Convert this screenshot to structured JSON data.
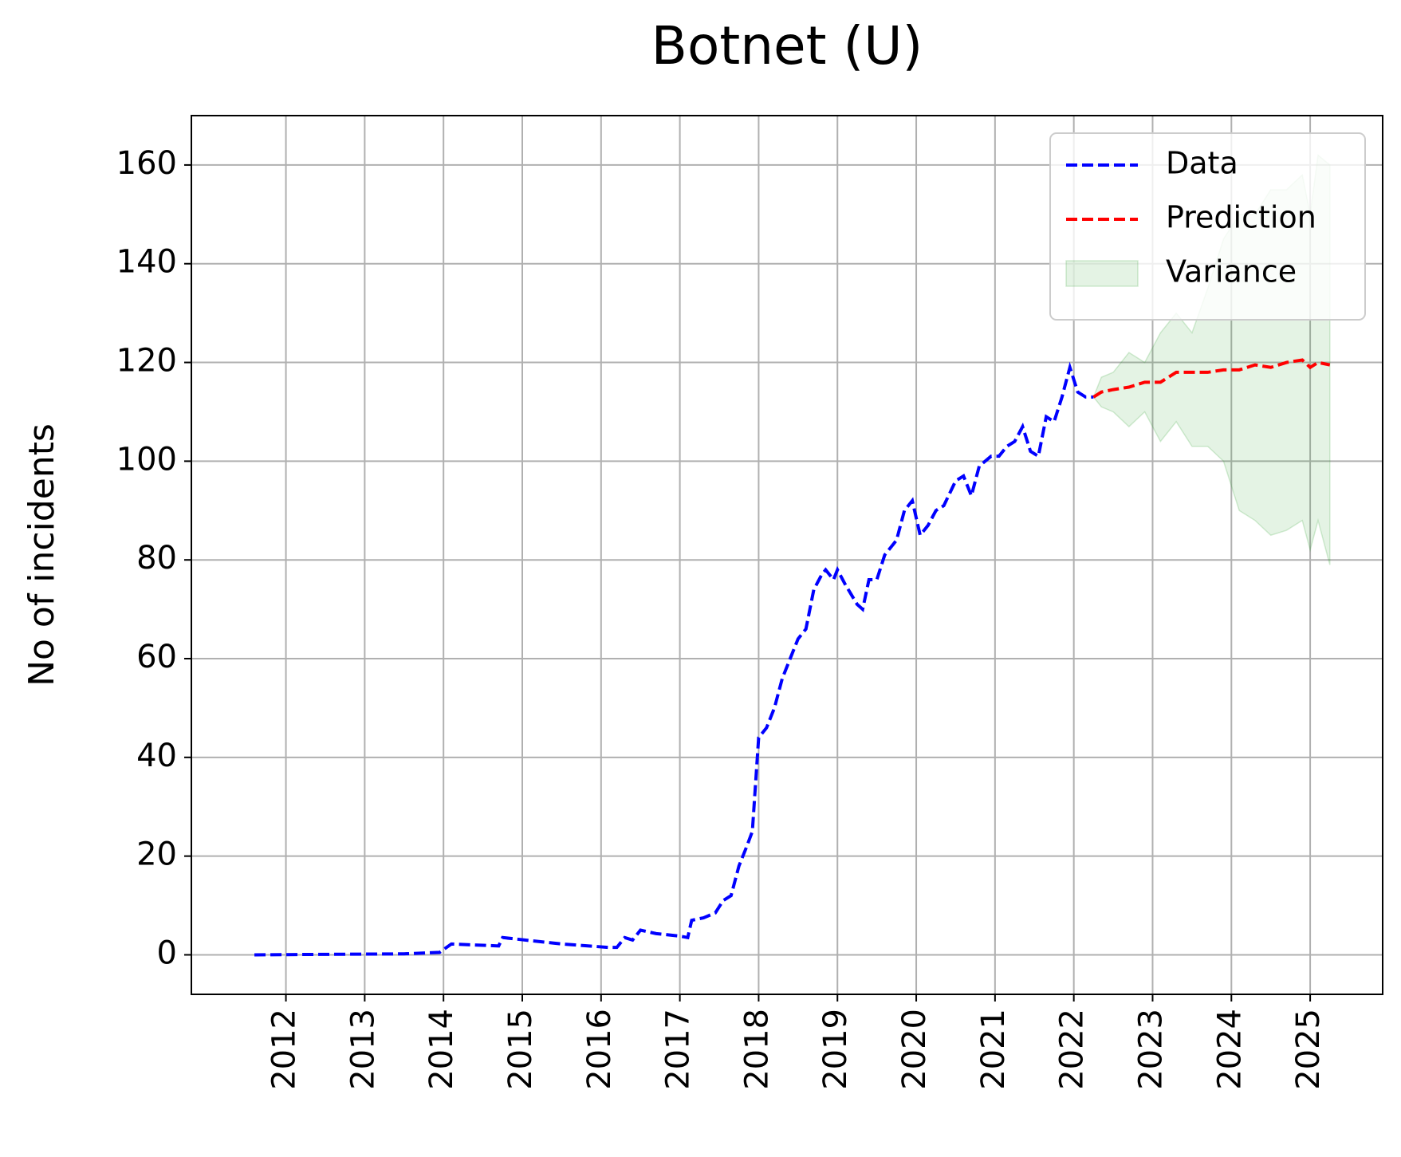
{
  "chart_data": {
    "type": "line",
    "title": "Botnet (U)",
    "y_label": "No of incidents",
    "xlim": [
      2010.8,
      2025.92
    ],
    "ylim": [
      -8,
      170
    ],
    "xticks": [
      2012,
      2013,
      2014,
      2015,
      2016,
      2017,
      2018,
      2019,
      2020,
      2021,
      2022,
      2023,
      2024,
      2025
    ],
    "yticks": [
      0,
      20,
      40,
      60,
      80,
      100,
      120,
      140,
      160
    ],
    "grid": true,
    "legend": "upper right",
    "series": [
      {
        "name": "Data",
        "color": "#0000ff",
        "x": [
          2011.6,
          2012.5,
          2013.5,
          2013.95,
          2014.1,
          2014.7,
          2014.75,
          2015.5,
          2016.1,
          2016.2,
          2016.3,
          2016.4,
          2016.5,
          2016.7,
          2017.0,
          2017.1,
          2017.15,
          2017.3,
          2017.45,
          2017.55,
          2017.65,
          2017.75,
          2017.85,
          2017.92,
          2018.0,
          2018.1,
          2018.2,
          2018.3,
          2018.4,
          2018.5,
          2018.6,
          2018.7,
          2018.8,
          2018.85,
          2018.95,
          2019.0,
          2019.1,
          2019.25,
          2019.32,
          2019.4,
          2019.5,
          2019.6,
          2019.75,
          2019.85,
          2019.95,
          2020.05,
          2020.15,
          2020.25,
          2020.35,
          2020.5,
          2020.6,
          2020.7,
          2020.8,
          2020.95,
          2021.05,
          2021.15,
          2021.25,
          2021.35,
          2021.45,
          2021.55,
          2021.65,
          2021.75,
          2021.85,
          2021.95,
          2022.05,
          2022.15,
          2022.25
        ],
        "values": [
          0,
          0.1,
          0.2,
          0.5,
          2.2,
          1.8,
          3.5,
          2.2,
          1.5,
          1.5,
          3.5,
          3,
          5,
          4.3,
          3.8,
          3.5,
          7,
          7.5,
          8.5,
          11,
          12,
          18,
          22,
          25,
          44,
          46,
          50,
          56,
          60,
          64,
          66,
          74,
          77,
          78,
          76,
          78,
          75,
          71,
          70,
          76,
          76,
          81,
          84,
          90,
          92,
          85,
          87,
          90,
          91,
          96,
          97,
          93,
          99,
          101,
          101,
          103,
          104,
          107,
          102,
          101,
          109,
          108,
          113,
          119,
          114,
          113,
          113
        ]
      },
      {
        "name": "Prediction",
        "color": "#ff0000",
        "x": [
          2022.25,
          2022.35,
          2022.5,
          2022.7,
          2022.9,
          2023.1,
          2023.3,
          2023.5,
          2023.7,
          2023.9,
          2024.1,
          2024.3,
          2024.5,
          2024.7,
          2024.9,
          2025.0,
          2025.1,
          2025.25
        ],
        "values": [
          113,
          114,
          114.5,
          115,
          116,
          116,
          118,
          118,
          118,
          118.5,
          118.5,
          119.5,
          119,
          120,
          120.5,
          119,
          120,
          119.5
        ]
      }
    ],
    "bands": [
      {
        "name": "Variance",
        "color": "#2ca02c",
        "x": [
          2022.25,
          2022.35,
          2022.5,
          2022.7,
          2022.9,
          2023.1,
          2023.3,
          2023.5,
          2023.7,
          2023.9,
          2024.1,
          2024.3,
          2024.5,
          2024.7,
          2024.9,
          2025.0,
          2025.1,
          2025.25
        ],
        "upper": [
          113,
          117,
          118,
          122,
          120,
          126,
          130,
          126,
          135,
          145,
          150,
          150,
          155,
          155,
          158,
          150,
          162,
          160
        ],
        "lower": [
          113,
          111,
          110,
          107,
          110,
          104,
          108,
          103,
          103,
          100,
          90,
          88,
          85,
          86,
          88,
          82,
          88,
          79
        ]
      }
    ]
  }
}
